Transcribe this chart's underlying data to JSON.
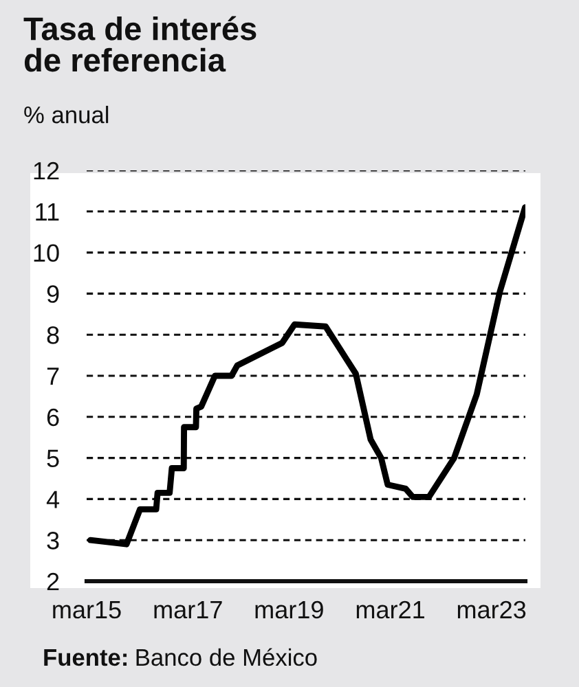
{
  "chart_data": {
    "type": "line",
    "title": "Tasa de interés\nde referencia",
    "subtitle": "% anual",
    "annotations": [
      "Fuente: Banco de México"
    ],
    "x": [
      "2015-03-28",
      "2015-12-14",
      "2016-03-20",
      "2016-07-15",
      "2016-07-25",
      "2016-10-20",
      "2016-11-05",
      "2017-01-30",
      "2017-02-01",
      "2017-04-28",
      "2017-05-01",
      "2017-06-05",
      "2017-09-12",
      "2018-01-10",
      "2018-02-20",
      "2019-01-10",
      "2019-04-10",
      "2019-11-20",
      "2020-06-25",
      "2020-10-10",
      "2020-12-25",
      "2021-02-10",
      "2021-06-20",
      "2021-08-10",
      "2021-12-05",
      "2022-06-05",
      "2022-11-15",
      "2023-05-01",
      "2023-10-30"
    ],
    "series": [
      {
        "color": "#000000",
        "values": [
          3.0,
          2.9,
          3.75,
          3.75,
          4.15,
          4.15,
          4.75,
          4.75,
          5.75,
          5.75,
          6.2,
          6.25,
          7.0,
          7.0,
          7.25,
          7.8,
          8.25,
          8.2,
          7.05,
          5.45,
          5.0,
          4.35,
          4.25,
          4.05,
          4.05,
          5.0,
          6.55,
          9.05,
          11.1
        ]
      }
    ],
    "xlim": [
      "2015-03-01",
      "2023-11-01"
    ],
    "xticks": [
      {
        "value": "2015-03-01",
        "label": "mar15"
      },
      {
        "value": "2017-03-01",
        "label": "mar17"
      },
      {
        "value": "2019-03-01",
        "label": "mar19"
      },
      {
        "value": "2021-03-01",
        "label": "mar21"
      },
      {
        "value": "2023-03-01",
        "label": "mar23"
      }
    ],
    "ylim": [
      2,
      12
    ],
    "yticks": [
      2,
      3,
      4,
      5,
      6,
      7,
      8,
      9,
      10,
      11,
      12
    ],
    "grid": "y",
    "marker": "none",
    "line_style": "solid"
  }
}
